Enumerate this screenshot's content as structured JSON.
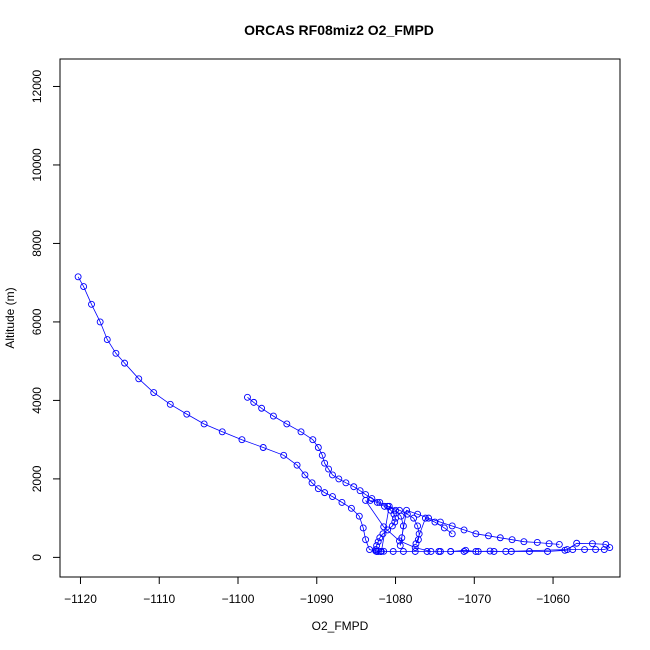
{
  "chart_data": {
    "type": "scatter",
    "title": "ORCAS RF08miz2 O2_FMPD",
    "xlabel": "O2_FMPD",
    "ylabel": "Altitude (m)",
    "xlim": [
      -1122.6,
      -1051.5
    ],
    "ylim": [
      -500,
      12700
    ],
    "xticks": [
      -1120,
      -1110,
      -1100,
      -1090,
      -1080,
      -1070,
      -1060
    ],
    "yticks": [
      0,
      2000,
      4000,
      6000,
      8000,
      10000,
      12000
    ],
    "grid": false,
    "marker": "open-circle",
    "color": "#0000ff",
    "connected": true,
    "series": [
      {
        "name": "",
        "x": [
          -1120.3,
          -1119.6,
          -1118.6,
          -1117.5,
          -1116.6,
          -1115.5,
          -1114.4,
          -1112.6,
          -1110.7,
          -1108.6,
          -1106.5,
          -1104.3,
          -1102.0,
          -1099.5,
          -1096.8,
          -1094.2,
          -1092.5,
          -1091.5,
          -1090.6,
          -1089.8,
          -1089.0,
          -1088.0,
          -1086.8,
          -1085.6,
          -1084.6,
          -1084.1,
          -1083.8,
          -1083.3,
          -1082.5,
          -1081.5,
          -1080.3,
          -1079.0,
          -1077.5,
          -1076.0,
          -1074.5,
          -1073.0,
          -1071.3,
          -1069.5,
          -1067.5,
          -1065.3,
          -1063.0,
          -1060.7,
          -1058.5,
          -1057.5,
          -1056.0,
          -1054.6,
          -1053.5,
          -1052.8,
          -1053.3,
          -1055.0,
          -1057.0,
          -1058.2,
          -1066.0,
          -1068.0,
          -1069.8,
          -1071.1,
          -1073.0,
          -1074.3,
          -1075.5,
          -1077.5,
          -1079.5,
          -1081.5,
          -1083.8
        ],
        "y": [
          7150,
          6900,
          6450,
          6000,
          5550,
          5200,
          4950,
          4550,
          4200,
          3900,
          3650,
          3400,
          3200,
          3000,
          2800,
          2600,
          2350,
          2100,
          1900,
          1750,
          1650,
          1550,
          1400,
          1250,
          1050,
          750,
          450,
          200,
          160,
          155,
          150,
          150,
          150,
          150,
          150,
          150,
          150,
          150,
          150,
          150,
          150,
          150,
          180,
          200,
          200,
          200,
          200,
          250,
          330,
          350,
          360,
          200,
          150,
          160,
          150,
          180,
          150,
          150,
          150,
          250,
          420,
          780,
          1450
        ]
      },
      {
        "name": "",
        "x": [
          -1098.8,
          -1098.0,
          -1097.0,
          -1095.5,
          -1093.8,
          -1092.0,
          -1090.5,
          -1089.8,
          -1089.3,
          -1089.0,
          -1088.5,
          -1088.0,
          -1087.2,
          -1086.3,
          -1085.3,
          -1084.5,
          -1083.8,
          -1083.0,
          -1082.0,
          -1081.0,
          -1080.0,
          -1079.3,
          -1079.0,
          -1079.2,
          -1079.4,
          -1078.6,
          -1077.2,
          -1075.8,
          -1074.3,
          -1072.8,
          -1071.3,
          -1069.8,
          -1068.2,
          -1066.7,
          -1065.2,
          -1063.7,
          -1062.0,
          -1060.5,
          -1059.2
        ],
        "y": [
          4080,
          3950,
          3800,
          3600,
          3400,
          3200,
          3000,
          2800,
          2600,
          2400,
          2250,
          2100,
          2000,
          1900,
          1800,
          1700,
          1600,
          1500,
          1400,
          1300,
          1200,
          1050,
          800,
          500,
          300,
          1200,
          1100,
          1000,
          900,
          800,
          700,
          600,
          550,
          500,
          450,
          400,
          380,
          350,
          330
        ]
      },
      {
        "name": "",
        "x": [
          -1083.2,
          -1082.3,
          -1081.4,
          -1080.6,
          -1080.2,
          -1080.0,
          -1080.1,
          -1080.4,
          -1081.0,
          -1081.6,
          -1082.0,
          -1082.2,
          -1082.4,
          -1082.5,
          -1082.4,
          -1082.2,
          -1081.9,
          -1081.8,
          -1080.8,
          -1079.5,
          -1078.5,
          -1077.7,
          -1077.2,
          -1077.0,
          -1077.1,
          -1077.4,
          -1076.2,
          -1075.0,
          -1073.8,
          -1072.8
        ],
        "y": [
          1450,
          1400,
          1300,
          1200,
          1100,
          1000,
          900,
          800,
          700,
          600,
          500,
          400,
          300,
          200,
          150,
          150,
          150,
          150,
          1300,
          1200,
          1100,
          1000,
          800,
          600,
          450,
          350,
          1000,
          900,
          750,
          600
        ]
      }
    ]
  }
}
